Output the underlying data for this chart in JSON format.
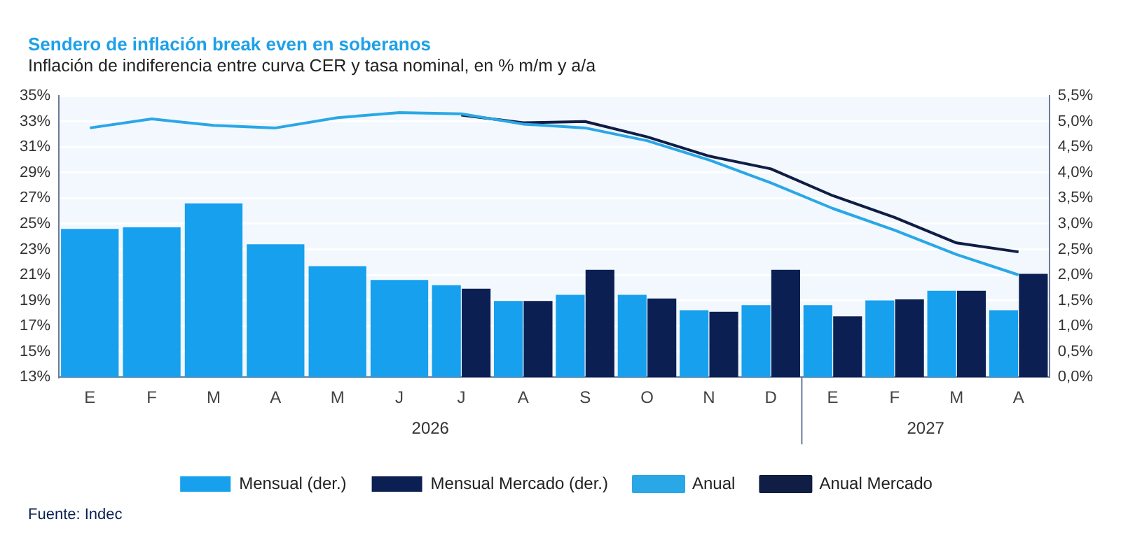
{
  "chart_data": {
    "type": "bar",
    "title": "Sendero de inflación break even en soberanos",
    "subtitle": "Inflación de indiferencia entre curva CER y tasa nominal, en % m/m y a/a",
    "categories": [
      "E",
      "F",
      "M",
      "A",
      "M",
      "J",
      "J",
      "A",
      "S",
      "O",
      "N",
      "D",
      "E",
      "F",
      "M",
      "A"
    ],
    "series": [
      {
        "name": "Mensual (der.)",
        "axis": "y2",
        "color": "#16a0ee",
        "values": [
          2.9,
          2.93,
          3.4,
          2.6,
          2.17,
          1.9,
          1.8,
          1.49,
          1.61,
          1.61,
          1.31,
          1.41,
          1.41,
          1.5,
          1.69,
          1.31
        ]
      },
      {
        "name": "Mensual Mercado (der.)",
        "axis": "y2",
        "color": "#0b1f52",
        "values": [
          null,
          null,
          null,
          null,
          null,
          null,
          1.73,
          1.49,
          2.1,
          1.54,
          1.28,
          2.1,
          1.19,
          1.52,
          1.69,
          2.02
        ]
      },
      {
        "name": "Anual",
        "type": "line",
        "color": "#2aa7e6",
        "values": [
          32.5,
          33.2,
          32.7,
          32.5,
          33.3,
          33.7,
          33.6,
          32.8,
          32.5,
          31.5,
          30.0,
          28.2,
          26.2,
          24.5,
          22.6,
          21.0
        ]
      },
      {
        "name": "Anual Mercado",
        "type": "line",
        "color": "#101d45",
        "values": [
          null,
          null,
          null,
          null,
          null,
          null,
          33.5,
          32.9,
          33.0,
          31.8,
          30.3,
          29.3,
          27.2,
          25.5,
          23.5,
          22.8
        ]
      }
    ],
    "ylim": [
      13,
      35
    ],
    "yticks": [
      {
        "value": 13,
        "label": "13%"
      },
      {
        "value": 15,
        "label": "15%"
      },
      {
        "value": 17,
        "label": "17%"
      },
      {
        "value": 19,
        "label": "19%"
      },
      {
        "value": 21,
        "label": "21%"
      },
      {
        "value": 23,
        "label": "23%"
      },
      {
        "value": 25,
        "label": "25%"
      },
      {
        "value": 27,
        "label": "27%"
      },
      {
        "value": 29,
        "label": "29%"
      },
      {
        "value": 31,
        "label": "31%"
      },
      {
        "value": 33,
        "label": "33%"
      },
      {
        "value": 35,
        "label": "35%"
      }
    ],
    "y2lim": [
      0,
      5.5
    ],
    "y2ticks": [
      {
        "value": 0,
        "label": "0,0%"
      },
      {
        "value": 0.5,
        "label": "0,5%"
      },
      {
        "value": 1,
        "label": "1,0%"
      },
      {
        "value": 1.5,
        "label": "1,5%"
      },
      {
        "value": 2,
        "label": "2,0%"
      },
      {
        "value": 2.5,
        "label": "2,5%"
      },
      {
        "value": 3,
        "label": "3,0%"
      },
      {
        "value": 3.5,
        "label": "3,5%"
      },
      {
        "value": 4,
        "label": "4,0%"
      },
      {
        "value": 4.5,
        "label": "4,5%"
      },
      {
        "value": 5,
        "label": "5,0%"
      },
      {
        "value": 5.5,
        "label": "5,5%"
      }
    ],
    "grid": "y",
    "legend": "bottom",
    "marker": "none",
    "line_style": "solid",
    "annotations": [
      "2026",
      "2027",
      "Fuente: Indec"
    ]
  }
}
